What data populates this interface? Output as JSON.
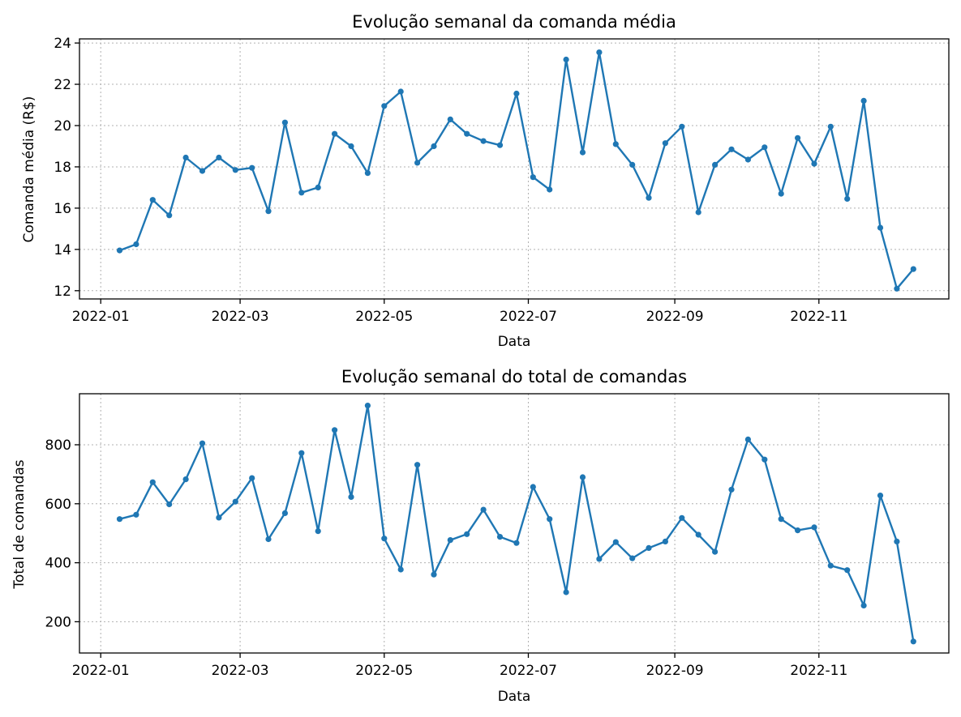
{
  "colors": {
    "series": "#1f77b4"
  },
  "chart_data": [
    {
      "type": "line",
      "title": "Evolução semanal da comanda média",
      "xlabel": "Data",
      "ylabel": "Comanda média (R$)",
      "ylim": [
        11.6,
        24.2
      ],
      "yticks": [
        12,
        14,
        16,
        18,
        20,
        22,
        24
      ],
      "xlim": [
        "2021-12-23",
        "2022-12-26"
      ],
      "xticks": [
        "2022-01-01",
        "2022-03-01",
        "2022-05-01",
        "2022-07-01",
        "2022-09-01",
        "2022-11-01"
      ],
      "xtick_labels": [
        "2022-01",
        "2022-03",
        "2022-05",
        "2022-07",
        "2022-09",
        "2022-11"
      ],
      "grid": true,
      "marker": "circle",
      "x": [
        "2022-01-09",
        "2022-01-16",
        "2022-01-23",
        "2022-01-30",
        "2022-02-06",
        "2022-02-13",
        "2022-02-20",
        "2022-02-27",
        "2022-03-06",
        "2022-03-13",
        "2022-03-20",
        "2022-03-27",
        "2022-04-03",
        "2022-04-10",
        "2022-04-17",
        "2022-04-24",
        "2022-05-01",
        "2022-05-08",
        "2022-05-15",
        "2022-05-22",
        "2022-05-29",
        "2022-06-05",
        "2022-06-12",
        "2022-06-19",
        "2022-06-26",
        "2022-07-03",
        "2022-07-10",
        "2022-07-17",
        "2022-07-24",
        "2022-07-31",
        "2022-08-07",
        "2022-08-14",
        "2022-08-21",
        "2022-08-28",
        "2022-09-04",
        "2022-09-11",
        "2022-09-18",
        "2022-09-25",
        "2022-10-02",
        "2022-10-09",
        "2022-10-16",
        "2022-10-23",
        "2022-10-30",
        "2022-11-06",
        "2022-11-13",
        "2022-11-20",
        "2022-11-27",
        "2022-12-04",
        "2022-12-11"
      ],
      "series": [
        {
          "values": [
            13.95,
            14.25,
            16.4,
            15.65,
            18.45,
            17.8,
            18.45,
            17.85,
            17.95,
            15.85,
            20.15,
            16.75,
            17.0,
            19.6,
            19.0,
            17.7,
            20.95,
            21.65,
            18.2,
            19.0,
            20.3,
            19.6,
            19.25,
            19.05,
            21.55,
            17.5,
            16.9,
            23.2,
            18.7,
            23.55,
            19.1,
            18.1,
            16.5,
            19.15,
            19.95,
            15.8,
            18.1,
            18.85,
            18.35,
            18.95,
            16.7,
            19.4,
            18.15,
            19.95,
            16.45,
            21.2,
            15.05,
            12.1,
            13.05
          ]
        }
      ]
    },
    {
      "type": "line",
      "title": "Evolução semanal do total de comandas",
      "xlabel": "Data",
      "ylabel": "Total de comandas",
      "ylim": [
        94,
        973
      ],
      "yticks": [
        200,
        400,
        600,
        800
      ],
      "xlim": [
        "2021-12-23",
        "2022-12-26"
      ],
      "xticks": [
        "2022-01-01",
        "2022-03-01",
        "2022-05-01",
        "2022-07-01",
        "2022-09-01",
        "2022-11-01"
      ],
      "xtick_labels": [
        "2022-01",
        "2022-03",
        "2022-05",
        "2022-07",
        "2022-09",
        "2022-11"
      ],
      "grid": true,
      "marker": "circle",
      "x": [
        "2022-01-09",
        "2022-01-16",
        "2022-01-23",
        "2022-01-30",
        "2022-02-06",
        "2022-02-13",
        "2022-02-20",
        "2022-02-27",
        "2022-03-06",
        "2022-03-13",
        "2022-03-20",
        "2022-03-27",
        "2022-04-03",
        "2022-04-10",
        "2022-04-17",
        "2022-04-24",
        "2022-05-01",
        "2022-05-08",
        "2022-05-15",
        "2022-05-22",
        "2022-05-29",
        "2022-06-05",
        "2022-06-12",
        "2022-06-19",
        "2022-06-26",
        "2022-07-03",
        "2022-07-10",
        "2022-07-17",
        "2022-07-24",
        "2022-07-31",
        "2022-08-07",
        "2022-08-14",
        "2022-08-21",
        "2022-08-28",
        "2022-09-04",
        "2022-09-11",
        "2022-09-18",
        "2022-09-25",
        "2022-10-02",
        "2022-10-09",
        "2022-10-16",
        "2022-10-23",
        "2022-10-30",
        "2022-11-06",
        "2022-11-13",
        "2022-11-20",
        "2022-11-27",
        "2022-12-04",
        "2022-12-11"
      ],
      "series": [
        {
          "values": [
            548,
            563,
            673,
            598,
            683,
            805,
            553,
            607,
            687,
            480,
            568,
            772,
            507,
            850,
            623,
            933,
            482,
            377,
            732,
            360,
            477,
            497,
            580,
            488,
            467,
            657,
            548,
            300,
            690,
            413,
            470,
            415,
            450,
            472,
            552,
            495,
            437,
            648,
            818,
            750,
            548,
            510,
            520,
            390,
            375,
            255,
            628,
            472,
            133
          ]
        }
      ]
    }
  ]
}
